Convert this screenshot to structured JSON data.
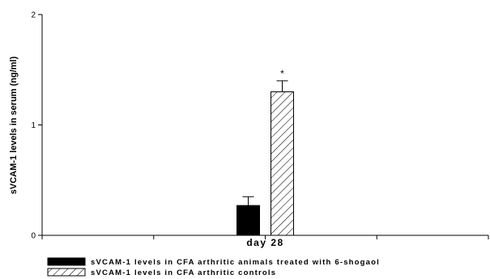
{
  "chart_data": {
    "type": "bar",
    "title": "",
    "xlabel": "",
    "ylabel": "sVCAM-1 levels in serum (ng/ml)",
    "ylim": [
      0,
      2
    ],
    "yticks": [
      "0",
      "1",
      "2"
    ],
    "categories": [
      "day 28"
    ],
    "grid": false,
    "legend_position": "bottom-left",
    "series": [
      {
        "name": "sVCAM-1 levels in CFA arthritic animals treated with 6-shogaol",
        "values": [
          0.27
        ],
        "errors": [
          0.08
        ],
        "fill": "solid",
        "color": "#000000",
        "annotation": ""
      },
      {
        "name": "sVCAM-1 levels in CFA arthritic controls",
        "values": [
          1.3
        ],
        "errors": [
          0.1
        ],
        "fill": "hatched",
        "color": "#000000",
        "annotation": "*"
      }
    ]
  }
}
